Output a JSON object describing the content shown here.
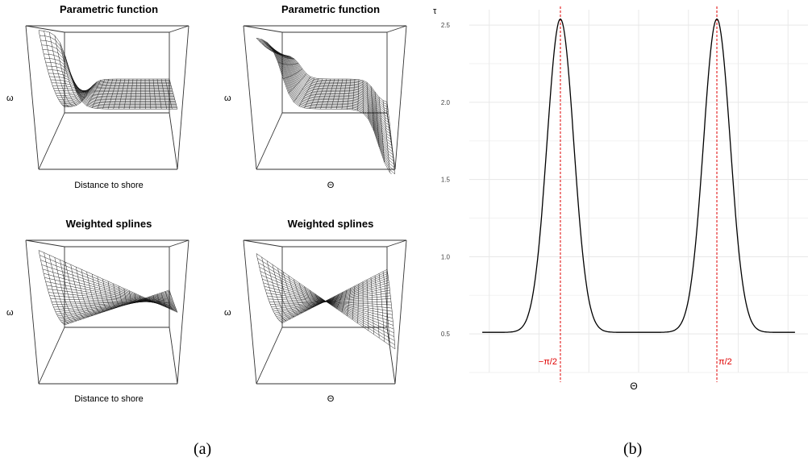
{
  "panel_a": {
    "plots": [
      {
        "title": "Parametric function",
        "xlabel": "Distance to shore",
        "zlabel": "ω"
      },
      {
        "title": "Parametric function",
        "xlabel": "Θ",
        "zlabel": "ω"
      },
      {
        "title": "Weighted splines",
        "xlabel": "Distance to shore",
        "zlabel": "ω"
      },
      {
        "title": "Weighted splines",
        "xlabel": "Θ",
        "zlabel": "ω"
      }
    ],
    "caption": "(a)"
  },
  "panel_b": {
    "caption": "(b)"
  },
  "chart_data": [
    {
      "type": "line",
      "title": "",
      "xlabel": "Θ",
      "ylabel": "τ",
      "x": [
        -3.14,
        -2.8,
        -2.4,
        -2.2,
        -2.0,
        -1.8,
        -1.7,
        -1.6,
        -1.5708,
        -1.5,
        -1.4,
        -1.3,
        -1.2,
        -1.0,
        -0.8,
        -0.6,
        -0.3,
        0.0,
        0.3,
        0.6,
        0.8,
        1.0,
        1.2,
        1.3,
        1.4,
        1.5,
        1.5708,
        1.6,
        1.7,
        1.8,
        2.0,
        2.2,
        2.4,
        2.8,
        3.14
      ],
      "series": [
        {
          "values": [
            0.51,
            0.55,
            0.69,
            0.86,
            1.18,
            1.68,
            2.02,
            2.36,
            2.54,
            2.36,
            2.02,
            1.68,
            1.35,
            0.86,
            0.64,
            0.55,
            0.51,
            0.51,
            0.51,
            0.55,
            0.64,
            0.86,
            1.35,
            1.68,
            2.02,
            2.36,
            2.54,
            2.36,
            2.02,
            1.68,
            1.18,
            0.86,
            0.69,
            0.55,
            0.51
          ]
        }
      ],
      "xlim": [
        -3.4,
        3.4
      ],
      "ylim": [
        0.25,
        2.6
      ],
      "yticks": [
        "0.5",
        "1.0",
        "1.5",
        "2.0",
        "2.5"
      ],
      "vlines": [
        {
          "x": -1.5708,
          "label": "−π/2",
          "color": "#e00000"
        },
        {
          "x": 1.5708,
          "label": "π/2",
          "color": "#e00000"
        }
      ],
      "grid": true
    }
  ]
}
